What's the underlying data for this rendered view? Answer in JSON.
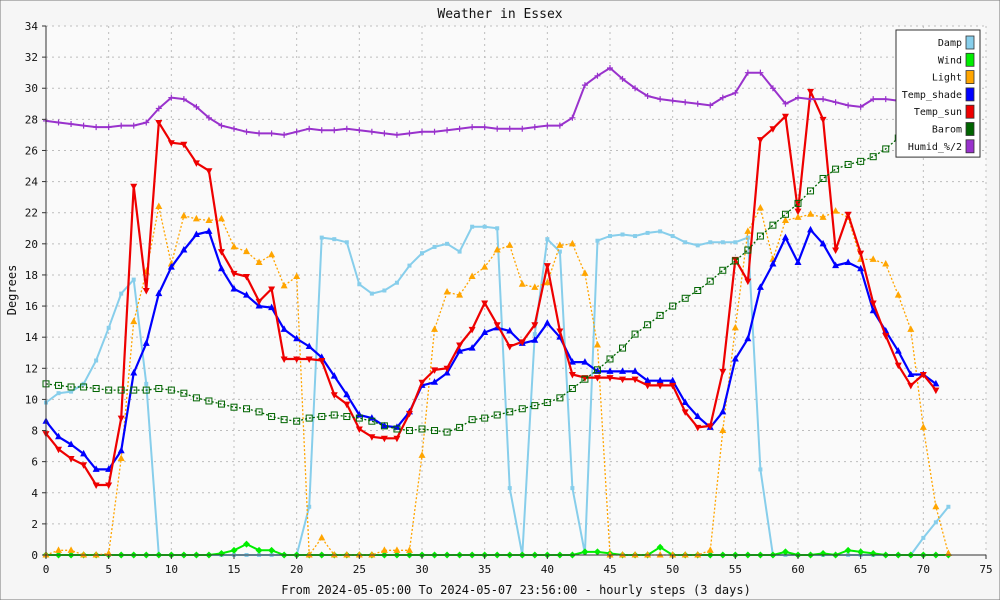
{
  "chart_data": {
    "type": "line",
    "title": "Weather in Essex",
    "xlabel": "From 2024-05-05:00 To 2024-05-07 23:56:00 - hourly steps (3 days)",
    "ylabel": "Degrees",
    "xlim": [
      0,
      75
    ],
    "ylim": [
      0,
      34
    ],
    "x_ticks": [
      0,
      5,
      10,
      15,
      20,
      25,
      30,
      35,
      40,
      45,
      50,
      55,
      60,
      65,
      70,
      75
    ],
    "y_ticks": [
      0,
      2,
      4,
      6,
      8,
      10,
      12,
      14,
      16,
      18,
      20,
      22,
      24,
      26,
      28,
      30,
      32,
      34
    ],
    "grid": true,
    "legend_position": "top-right",
    "series": [
      {
        "name": "Damp",
        "color": "#87CEEB",
        "style": "solid",
        "marker": "square-small",
        "values": [
          9.8,
          10.4,
          10.5,
          11.0,
          12.5,
          14.6,
          16.8,
          17.7,
          11.0,
          0,
          0,
          0,
          0,
          0,
          0,
          0,
          0,
          0,
          0,
          0,
          0,
          3.1,
          20.4,
          20.3,
          20.1,
          17.4,
          16.8,
          17.0,
          17.5,
          18.6,
          19.4,
          19.8,
          20.0,
          19.5,
          21.1,
          21.1,
          21.0,
          4.3,
          0,
          14.2,
          20.3,
          19.5,
          4.3,
          0.1,
          20.2,
          20.5,
          20.6,
          20.5,
          20.7,
          20.8,
          20.5,
          20.1,
          19.9,
          20.1,
          20.1,
          20.1,
          20.4,
          5.5,
          0,
          0,
          0,
          0,
          0,
          0,
          0,
          0,
          0,
          0,
          0,
          0,
          1.1,
          2.1,
          3.1
        ]
      },
      {
        "name": "Wind",
        "color": "#00EE00",
        "style": "solid",
        "marker": "diamond",
        "values": [
          0,
          0,
          0,
          0,
          0,
          0,
          0,
          0,
          0,
          0,
          0,
          0,
          0,
          0,
          0.1,
          0.3,
          0.7,
          0.3,
          0.3,
          0,
          0,
          0,
          0,
          0,
          0,
          0,
          0,
          0,
          0,
          0,
          0,
          0,
          0,
          0,
          0,
          0,
          0,
          0,
          0,
          0,
          0,
          0,
          0,
          0.2,
          0.2,
          0.1,
          0,
          0,
          0,
          0.5,
          0,
          0,
          0,
          0,
          0,
          0,
          0,
          0,
          0,
          0.2,
          0,
          0,
          0.1,
          0,
          0.3,
          0.2,
          0.1,
          0,
          0,
          0,
          0,
          0,
          0
        ]
      },
      {
        "name": "Light",
        "color": "#FFA500",
        "style": "dotted",
        "marker": "triangle",
        "values": [
          0,
          0.3,
          0.3,
          0,
          0,
          0.1,
          6.2,
          15.0,
          18.2,
          22.4,
          18.7,
          21.8,
          21.6,
          21.5,
          21.6,
          19.8,
          19.5,
          18.8,
          19.3,
          17.3,
          17.9,
          0,
          1.1,
          0,
          0,
          0,
          0,
          0.3,
          0.3,
          0.3,
          6.4,
          14.5,
          16.9,
          16.7,
          17.9,
          18.5,
          19.6,
          19.9,
          17.4,
          17.2,
          17.5,
          19.9,
          20.0,
          18.1,
          13.5,
          0,
          0,
          0,
          0,
          0,
          0,
          0,
          0,
          0.3,
          8.0,
          14.6,
          20.8,
          22.3,
          19.0,
          21.5,
          21.7,
          21.9,
          21.7,
          22.1,
          21.7,
          19.0,
          19.0,
          18.7,
          16.7,
          14.5,
          8.2,
          3.1,
          0.1
        ]
      },
      {
        "name": "Temp_shade",
        "color": "#0000FF",
        "style": "solid",
        "marker": "triangle",
        "values": [
          8.6,
          7.6,
          7.1,
          6.5,
          5.5,
          5.5,
          6.7,
          11.7,
          13.6,
          16.8,
          18.5,
          19.6,
          20.6,
          20.8,
          18.4,
          17.1,
          16.7,
          16.0,
          15.9,
          14.5,
          13.9,
          13.4,
          12.7,
          11.5,
          10.3,
          9.0,
          8.8,
          8.3,
          8.2,
          9.2,
          10.9,
          11.1,
          11.7,
          13.1,
          13.3,
          14.3,
          14.6,
          14.4,
          13.6,
          13.8,
          14.9,
          14.0,
          12.4,
          12.4,
          11.8,
          11.8,
          11.8,
          11.8,
          11.2,
          11.2,
          11.2,
          9.8,
          8.9,
          8.2,
          9.2,
          12.6,
          13.9,
          17.2,
          18.7,
          20.4,
          18.8,
          20.9,
          20.0,
          18.6,
          18.8,
          18.4,
          15.7,
          14.4,
          13.1,
          11.6,
          11.6,
          11.0
        ]
      },
      {
        "name": "Temp_sun",
        "color": "#EE0000",
        "style": "solid",
        "marker": "triangle-down",
        "values": [
          7.8,
          6.8,
          6.2,
          5.8,
          4.5,
          4.5,
          8.8,
          23.7,
          17.0,
          27.8,
          26.5,
          26.4,
          25.2,
          24.7,
          19.5,
          18.1,
          17.9,
          16.3,
          17.1,
          12.6,
          12.6,
          12.6,
          12.5,
          10.3,
          9.7,
          8.1,
          7.6,
          7.5,
          7.5,
          9.1,
          11.1,
          11.9,
          12.0,
          13.5,
          14.5,
          16.2,
          14.8,
          13.4,
          13.7,
          14.8,
          18.6,
          14.4,
          11.6,
          11.4,
          11.4,
          11.4,
          11.3,
          11.3,
          10.9,
          10.9,
          10.9,
          9.2,
          8.2,
          8.3,
          11.8,
          19.0,
          17.6,
          26.7,
          27.4,
          28.2,
          22.1,
          29.8,
          28.0,
          19.6,
          21.9,
          19.4,
          16.2,
          14.1,
          12.2,
          10.9,
          11.6,
          10.6
        ]
      },
      {
        "name": "Barom",
        "color": "#006400",
        "style": "dotted",
        "marker": "square-open",
        "values": [
          11.0,
          10.9,
          10.8,
          10.8,
          10.7,
          10.6,
          10.6,
          10.6,
          10.6,
          10.7,
          10.6,
          10.4,
          10.1,
          9.9,
          9.7,
          9.5,
          9.4,
          9.2,
          8.9,
          8.7,
          8.6,
          8.8,
          8.9,
          9.0,
          8.9,
          8.8,
          8.6,
          8.3,
          8.1,
          8.0,
          8.1,
          8.0,
          7.9,
          8.2,
          8.7,
          8.8,
          9.0,
          9.2,
          9.4,
          9.6,
          9.8,
          10.1,
          10.7,
          11.3,
          11.9,
          12.6,
          13.3,
          14.2,
          14.8,
          15.4,
          16.0,
          16.5,
          17.0,
          17.6,
          18.3,
          18.9,
          19.6,
          20.5,
          21.2,
          21.9,
          22.6,
          23.4,
          24.2,
          24.8,
          25.1,
          25.3,
          25.6,
          26.1,
          26.8,
          27.5,
          28.0,
          28.3
        ]
      },
      {
        "name": "Humid_%/2",
        "color": "#9932CC",
        "style": "solid",
        "marker": "cross",
        "values": [
          27.9,
          27.8,
          27.7,
          27.6,
          27.5,
          27.5,
          27.6,
          27.6,
          27.8,
          28.7,
          29.4,
          29.3,
          28.8,
          28.1,
          27.6,
          27.4,
          27.2,
          27.1,
          27.1,
          27.0,
          27.2,
          27.4,
          27.3,
          27.3,
          27.4,
          27.3,
          27.2,
          27.1,
          27.0,
          27.1,
          27.2,
          27.2,
          27.3,
          27.4,
          27.5,
          27.5,
          27.4,
          27.4,
          27.4,
          27.5,
          27.6,
          27.6,
          28.1,
          30.2,
          30.8,
          31.3,
          30.6,
          30.0,
          29.5,
          29.3,
          29.2,
          29.1,
          29.0,
          28.9,
          29.4,
          29.7,
          31.0,
          31.0,
          30.0,
          29.0,
          29.4,
          29.3,
          29.3,
          29.1,
          28.9,
          28.8,
          29.3,
          29.3,
          29.2,
          29.2,
          29.0,
          29.0
        ]
      }
    ]
  }
}
